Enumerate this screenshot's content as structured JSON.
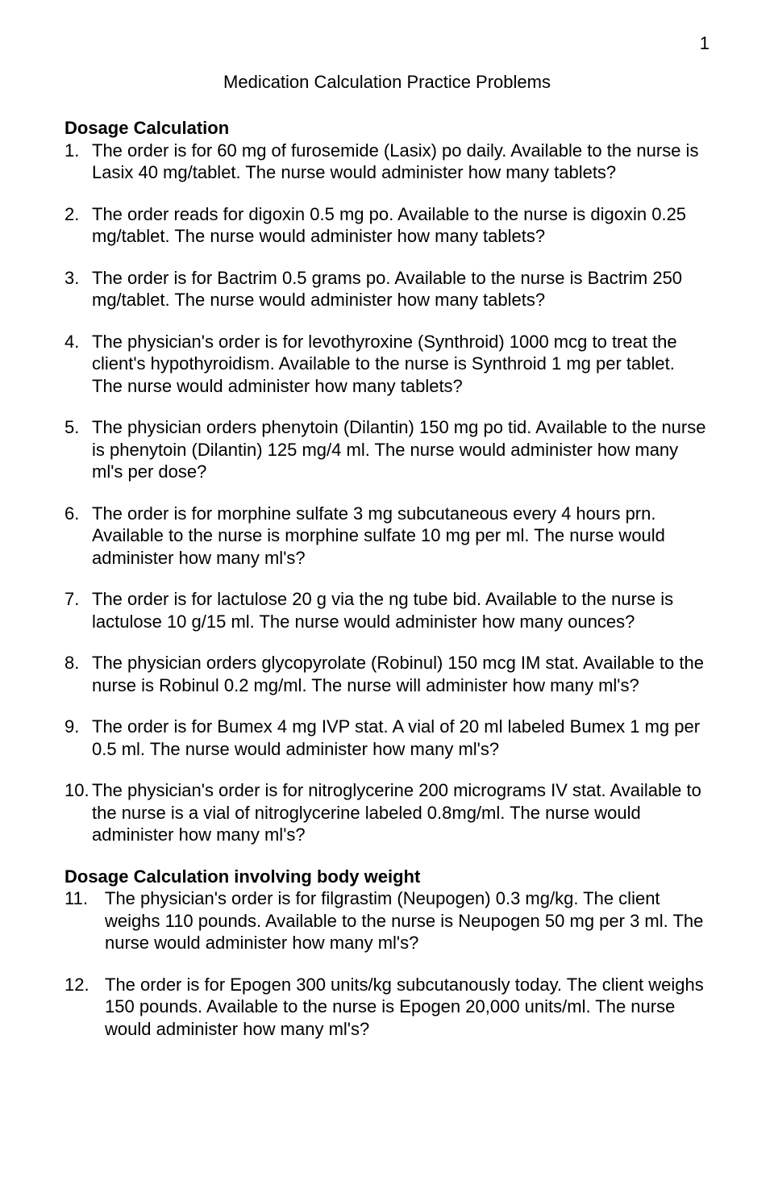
{
  "page_number": "1",
  "title": "Medication Calculation Practice Problems",
  "section1": {
    "heading": "Dosage Calculation",
    "items": [
      {
        "n": "1.",
        "t": "The order is for 60 mg of furosemide (Lasix) po daily. Available to the nurse is Lasix 40 mg/tablet. The nurse would administer how many tablets?"
      },
      {
        "n": "2.",
        "t": "The order reads for digoxin 0.5 mg po. Available to the nurse is digoxin 0.25 mg/tablet. The nurse would administer how many tablets?"
      },
      {
        "n": "3.",
        "t": "The order is for Bactrim 0.5 grams po. Available to the nurse is Bactrim 250 mg/tablet. The nurse would administer how many tablets?"
      },
      {
        "n": "4.",
        "t": "The physician's order is for levothyroxine (Synthroid) 1000 mcg to treat the client's hypothyroidism. Available to the nurse is Synthroid 1 mg per tablet. The nurse would administer how many tablets?"
      },
      {
        "n": "5.",
        "t": "The physician orders phenytoin (Dilantin) 150 mg po tid. Available to the nurse is phenytoin (Dilantin) 125 mg/4 ml. The nurse would administer how many ml's per dose?"
      },
      {
        "n": "6.",
        "t": "The order is for morphine sulfate 3 mg subcutaneous every 4 hours prn. Available to the nurse is morphine sulfate 10 mg per ml. The nurse would administer how many ml's?"
      },
      {
        "n": "7.",
        "t": "The order is for lactulose 20 g via the ng tube bid. Available to the nurse is lactulose 10 g/15 ml. The nurse would administer how many ounces?"
      },
      {
        "n": "8.",
        "t": "The physician orders glycopyrolate (Robinul) 150 mcg IM stat. Available to the nurse is Robinul 0.2 mg/ml. The nurse will administer how many ml's?"
      },
      {
        "n": "9.",
        "t": "The order is for Bumex 4 mg IVP stat. A vial of 20 ml labeled Bumex 1 mg per 0.5 ml. The nurse would administer how many ml's?"
      },
      {
        "n": "10.",
        "t": "The physician's order is for nitroglycerine 200 micrograms IV stat. Available to the nurse is a vial of nitroglycerine labeled 0.8mg/ml. The nurse would administer how many ml's?"
      }
    ]
  },
  "section2": {
    "heading": "Dosage Calculation involving body weight",
    "items": [
      {
        "n": "11.",
        "t": "The physician's order is for filgrastim (Neupogen) 0.3 mg/kg. The client weighs 110 pounds. Available to the nurse is Neupogen 50 mg per 3 ml. The nurse would administer how many ml's?"
      },
      {
        "n": "12.",
        "t": "The order is for Epogen 300 units/kg subcutanously today. The client weighs 150 pounds. Available to the nurse is Epogen 20,000 units/ml. The nurse would administer how many ml's?"
      }
    ]
  }
}
